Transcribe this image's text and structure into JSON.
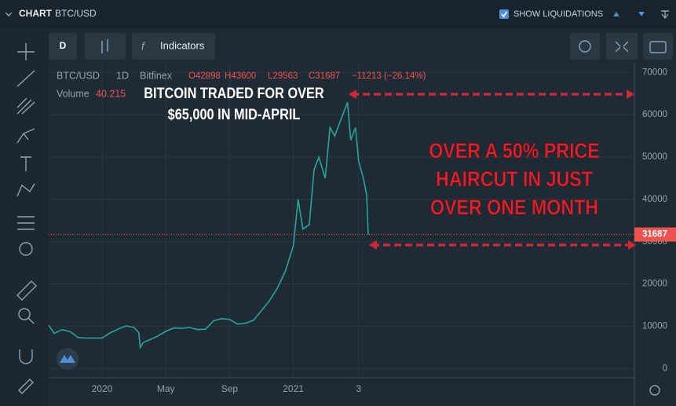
{
  "ui": {
    "panel_title": "CHART",
    "panel_symbol": "BTC/USD",
    "liquidations": "SHOW LIQUIDATIONS",
    "interval_button": "D",
    "indicators_button": "Indicators",
    "legend": {
      "symbol": "BTC/USD",
      "interval": "1D",
      "exchange": "Bitfinex",
      "ohlc": [
        "O42898",
        "H43600",
        "L29563",
        "C31687"
      ],
      "change": "−11213 (−26.14%)",
      "volume_label": "Volume",
      "volume_value": "40.215"
    }
  },
  "chart_data": {
    "type": "line",
    "color": "#26a69a",
    "x": [
      -3.35,
      -3,
      -2.5,
      -2,
      -1.5,
      -1,
      -0.5,
      0,
      0.5,
      1,
      1.5,
      2,
      2.3,
      2.4,
      2.6,
      3,
      3.5,
      4,
      4.5,
      5,
      5.5,
      6,
      6.5,
      7,
      7.5,
      8,
      8.5,
      9,
      9.5,
      10,
      10.5,
      11,
      11.5,
      12,
      12.3,
      12.6,
      13,
      13.3,
      13.6,
      14,
      14.3,
      14.6,
      15,
      15.4,
      15.6,
      15.9,
      16.1,
      16.4,
      16.6,
      16.7
    ],
    "values": [
      10200,
      8300,
      9200,
      8700,
      7300,
      7200,
      7200,
      7200,
      8400,
      9300,
      10100,
      9700,
      8500,
      5000,
      6200,
      6800,
      7700,
      8800,
      9600,
      9500,
      9700,
      9200,
      9300,
      11300,
      11800,
      11600,
      10500,
      10700,
      11400,
      13700,
      16000,
      19000,
      23000,
      29000,
      40000,
      33000,
      34000,
      47000,
      50000,
      45000,
      57000,
      55000,
      59000,
      63000,
      54000,
      57000,
      49000,
      45000,
      41000,
      31687
    ],
    "xlim": [
      -3.35,
      33.4
    ],
    "xticks": [
      {
        "value": 0,
        "label": "2020"
      },
      {
        "value": 4,
        "label": "May"
      },
      {
        "value": 8,
        "label": "Sep"
      },
      {
        "value": 12,
        "label": "2021"
      },
      {
        "value": 16.1,
        "label": "3"
      }
    ],
    "ylim": [
      -2000,
      72300
    ],
    "yticks": [
      0,
      10000,
      20000,
      30000,
      40000,
      50000,
      60000,
      70000
    ],
    "last_price": 31687,
    "annotations": [
      [
        "BITCOIN TRADED FOR OVER",
        "$65,000 IN MID-APRIL"
      ],
      [
        "OVER A 50% PRICE",
        "HAIRCUT IN JUST",
        "OVER ONE MONTH"
      ]
    ]
  }
}
